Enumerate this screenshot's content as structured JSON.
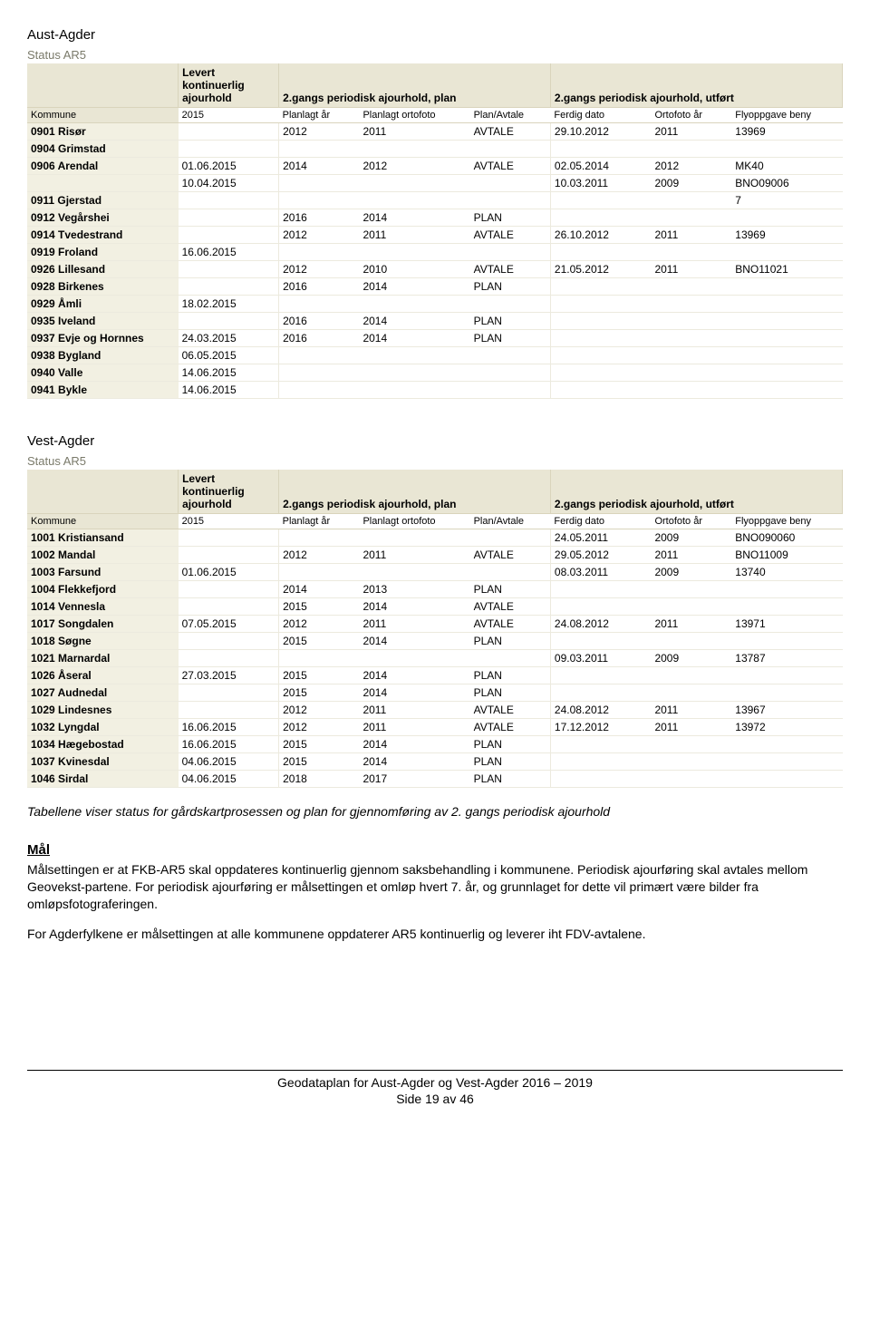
{
  "sections": {
    "aust": {
      "heading": "Aust-Agder",
      "status": "Status AR5"
    },
    "vest": {
      "heading": "Vest-Agder",
      "status": "Status AR5"
    }
  },
  "headers": {
    "kommune": "Kommune",
    "group1": "Levert kontinuerlig ajourhold",
    "group2": "2.gangs periodisk ajourhold, plan",
    "group3": "2.gangs periodisk ajourhold, utført",
    "lev": "2015",
    "planlagt": "Planlagt år",
    "ortofoto": "Planlagt ortofoto",
    "planavtale": "Plan/Avtale",
    "ferdig": "Ferdig dato",
    "ortoar": "Ortofoto år",
    "flyopp": "Flyoppgave beny"
  },
  "aust_rows": [
    {
      "k": "0901 Risør",
      "lev": "",
      "pl": "2012",
      "or": "2011",
      "pa": "AVTALE",
      "fd": "29.10.2012",
      "oa": "2011",
      "fb": "13969"
    },
    {
      "k": "0904 Grimstad",
      "lev": "",
      "pl": "",
      "or": "",
      "pa": "",
      "fd": "",
      "oa": "",
      "fb": ""
    },
    {
      "k": "0906 Arendal",
      "lev": "01.06.2015",
      "pl": "2014",
      "or": "2012",
      "pa": "AVTALE",
      "fd": "02.05.2014",
      "oa": "2012",
      "fb": "MK40"
    },
    {
      "k": "",
      "lev": "10.04.2015",
      "pl": "",
      "or": "",
      "pa": "",
      "fd": "10.03.2011",
      "oa": "2009",
      "fb": "BNO09006"
    },
    {
      "k": "0911 Gjerstad",
      "lev": "",
      "pl": "",
      "or": "",
      "pa": "",
      "fd": "",
      "oa": "",
      "fb": "7"
    },
    {
      "k": "0912 Vegårshei",
      "lev": "",
      "pl": "2016",
      "or": "2014",
      "pa": "PLAN",
      "fd": "",
      "oa": "",
      "fb": ""
    },
    {
      "k": "0914 Tvedestrand",
      "lev": "",
      "pl": "2012",
      "or": "2011",
      "pa": "AVTALE",
      "fd": "26.10.2012",
      "oa": "2011",
      "fb": "13969"
    },
    {
      "k": "0919 Froland",
      "lev": "16.06.2015",
      "pl": "",
      "or": "",
      "pa": "",
      "fd": "",
      "oa": "",
      "fb": ""
    },
    {
      "k": "0926 Lillesand",
      "lev": "",
      "pl": "2012",
      "or": "2010",
      "pa": "AVTALE",
      "fd": "21.05.2012",
      "oa": "2011",
      "fb": "BNO11021"
    },
    {
      "k": "0928 Birkenes",
      "lev": "",
      "pl": "2016",
      "or": "2014",
      "pa": "PLAN",
      "fd": "",
      "oa": "",
      "fb": ""
    },
    {
      "k": "0929 Åmli",
      "lev": "18.02.2015",
      "pl": "",
      "or": "",
      "pa": "",
      "fd": "",
      "oa": "",
      "fb": ""
    },
    {
      "k": "0935 Iveland",
      "lev": "",
      "pl": "2016",
      "or": "2014",
      "pa": "PLAN",
      "fd": "",
      "oa": "",
      "fb": ""
    },
    {
      "k": "0937 Evje og Hornnes",
      "lev": "24.03.2015",
      "pl": "2016",
      "or": "2014",
      "pa": "PLAN",
      "fd": "",
      "oa": "",
      "fb": ""
    },
    {
      "k": "0938 Bygland",
      "lev": "06.05.2015",
      "pl": "",
      "or": "",
      "pa": "",
      "fd": "",
      "oa": "",
      "fb": ""
    },
    {
      "k": "0940 Valle",
      "lev": "14.06.2015",
      "pl": "",
      "or": "",
      "pa": "",
      "fd": "",
      "oa": "",
      "fb": ""
    },
    {
      "k": "0941 Bykle",
      "lev": "14.06.2015",
      "pl": "",
      "or": "",
      "pa": "",
      "fd": "",
      "oa": "",
      "fb": ""
    }
  ],
  "vest_rows": [
    {
      "k": "1001 Kristiansand",
      "lev": "",
      "pl": "",
      "or": "",
      "pa": "",
      "fd": "24.05.2011",
      "oa": "2009",
      "fb": "BNO090060"
    },
    {
      "k": "1002 Mandal",
      "lev": "",
      "pl": "2012",
      "or": "2011",
      "pa": "AVTALE",
      "fd": "29.05.2012",
      "oa": "2011",
      "fb": "BNO11009"
    },
    {
      "k": "1003 Farsund",
      "lev": "01.06.2015",
      "pl": "",
      "or": "",
      "pa": "",
      "fd": "08.03.2011",
      "oa": "2009",
      "fb": "13740"
    },
    {
      "k": "1004 Flekkefjord",
      "lev": "",
      "pl": "2014",
      "or": "2013",
      "pa": "PLAN",
      "fd": "",
      "oa": "",
      "fb": ""
    },
    {
      "k": "1014 Vennesla",
      "lev": "",
      "pl": "2015",
      "or": "2014",
      "pa": "AVTALE",
      "fd": "",
      "oa": "",
      "fb": ""
    },
    {
      "k": "1017 Songdalen",
      "lev": "07.05.2015",
      "pl": "2012",
      "or": "2011",
      "pa": "AVTALE",
      "fd": "24.08.2012",
      "oa": "2011",
      "fb": "13971"
    },
    {
      "k": "1018 Søgne",
      "lev": "",
      "pl": "2015",
      "or": "2014",
      "pa": "PLAN",
      "fd": "",
      "oa": "",
      "fb": ""
    },
    {
      "k": "1021 Marnardal",
      "lev": "",
      "pl": "",
      "or": "",
      "pa": "",
      "fd": "09.03.2011",
      "oa": "2009",
      "fb": "13787"
    },
    {
      "k": "1026 Åseral",
      "lev": "27.03.2015",
      "pl": "2015",
      "or": "2014",
      "pa": "PLAN",
      "fd": "",
      "oa": "",
      "fb": ""
    },
    {
      "k": "1027 Audnedal",
      "lev": "",
      "pl": "2015",
      "or": "2014",
      "pa": "PLAN",
      "fd": "",
      "oa": "",
      "fb": ""
    },
    {
      "k": "1029 Lindesnes",
      "lev": "",
      "pl": "2012",
      "or": "2011",
      "pa": "AVTALE",
      "fd": "24.08.2012",
      "oa": "2011",
      "fb": "13967"
    },
    {
      "k": "1032 Lyngdal",
      "lev": "16.06.2015",
      "pl": "2012",
      "or": "2011",
      "pa": "AVTALE",
      "fd": "17.12.2012",
      "oa": "2011",
      "fb": "13972"
    },
    {
      "k": "1034 Hægebostad",
      "lev": "16.06.2015",
      "pl": "2015",
      "or": "2014",
      "pa": "PLAN",
      "fd": "",
      "oa": "",
      "fb": ""
    },
    {
      "k": "1037 Kvinesdal",
      "lev": "04.06.2015",
      "pl": "2015",
      "or": "2014",
      "pa": "PLAN",
      "fd": "",
      "oa": "",
      "fb": ""
    },
    {
      "k": "1046 Sirdal",
      "lev": "04.06.2015",
      "pl": "2018",
      "or": "2017",
      "pa": "PLAN",
      "fd": "",
      "oa": "",
      "fb": ""
    }
  ],
  "caption1": "Tabellene viser status for gårdskartprosessen og plan for gjennomføring av 2. gangs periodisk ajourhold",
  "maal": {
    "heading": "Mål",
    "p1": "Målsettingen er at FKB-AR5 skal oppdateres kontinuerlig gjennom saksbehandling i kommunene. Periodisk ajourføring skal avtales mellom Geovekst-partene. For periodisk ajourføring er målsettingen et omløp hvert 7. år, og grunnlaget for dette vil primært være bilder fra omløpsfotograferingen.",
    "p2": "For Agderfylkene er målsettingen at alle kommunene oppdaterer AR5 kontinuerlig og leverer iht FDV-avtalene."
  },
  "footer": {
    "line1": "Geodataplan for Aust-Agder og Vest-Agder 2016 – 2019",
    "line2": "Side 19 av 46"
  }
}
